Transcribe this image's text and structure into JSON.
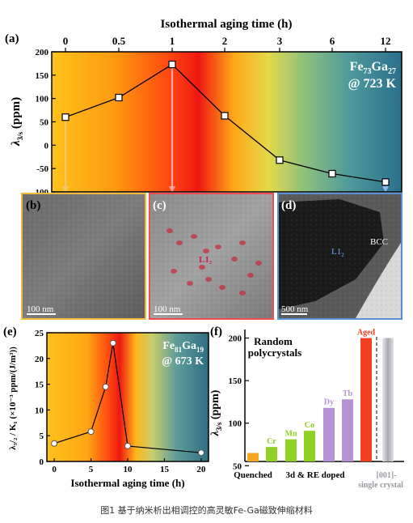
{
  "panel_a": {
    "label": "(a)",
    "top_axis_title": "Isothermal aging time (h)",
    "top_ticks": [
      "0",
      "0.5",
      "1",
      "2",
      "3",
      "6",
      "12"
    ],
    "ylabel_main": "λ",
    "ylabel_sub": "3/s",
    "ylabel_unit": " (ppm)",
    "y_ticks": [
      "200",
      "150",
      "100",
      "50",
      "0",
      "-50",
      "-100"
    ],
    "comp_main": "Fe",
    "comp_sub1": "73",
    "comp_mid": "Ga",
    "comp_sub2": "27",
    "temp": "@ 723 K"
  },
  "panel_b": {
    "label": "(b)",
    "scale": "100 nm"
  },
  "panel_c": {
    "label": "(c)",
    "scale": "100 nm",
    "phase": "L1₂"
  },
  "panel_d": {
    "label": "(d)",
    "scale": "500 nm",
    "phase_l1": "L1",
    "phase_l1_sub": "2",
    "phase_bcc": "BCC"
  },
  "panel_e": {
    "label": "(e)",
    "ylabel": "λ₃/₂ / K₁ (×10⁻³ ppm/(J/m³))",
    "xlabel": "Isothermal aging time (h)",
    "x_ticks": [
      "0",
      "5",
      "10",
      "15",
      "20"
    ],
    "y_ticks": [
      "0",
      "5",
      "10",
      "15",
      "20",
      "25"
    ],
    "comp_main": "Fe",
    "comp_sub1": "81",
    "comp_mid": "Ga",
    "comp_sub2": "19",
    "temp": "@ 673 K"
  },
  "panel_f": {
    "label": "(f)",
    "title_line1": "Random",
    "title_line2": "polycrystals",
    "ylabel_main": "λ",
    "ylabel_sub": "3/s",
    "ylabel_unit": " (ppm)",
    "y_ticks": [
      "50",
      "100",
      "150",
      "200"
    ],
    "group_quenched": "Quenched",
    "group_doped": "3d & RE doped",
    "group_single_line1": "[001]-",
    "group_single_line2": "single crystal"
  },
  "caption": "图1 基于纳米析出相调控的高灵敏Fe-Ga磁致伸缩材料",
  "chart_data": [
    {
      "type": "line",
      "title": "Isothermal aging time (h)",
      "xlabel": "Isothermal aging time (h)",
      "ylabel": "λ3/s (ppm)",
      "ylim": [
        -100,
        200
      ],
      "series": [
        {
          "name": "Fe73Ga27 @ 723 K",
          "x": [
            "0",
            "0.5",
            "1",
            "2",
            "3",
            "6",
            "12"
          ],
          "values": [
            60,
            102,
            173,
            63,
            -32,
            -61,
            -79
          ]
        }
      ]
    },
    {
      "type": "line",
      "xlabel": "Isothermal aging time (h)",
      "ylabel": "λ3/2 / K1 (×10⁻³ ppm/(J/m³))",
      "xlim": [
        -1,
        21
      ],
      "ylim": [
        0,
        25
      ],
      "series": [
        {
          "name": "Fe81Ga19 @ 673 K",
          "x": [
            0,
            5,
            7,
            8,
            10,
            20
          ],
          "values": [
            3.5,
            5.8,
            14.5,
            23,
            3,
            1.7
          ]
        }
      ]
    },
    {
      "type": "bar",
      "ylabel": "λ3/s (ppm)",
      "ylim": [
        55,
        210
      ],
      "categories": [
        "Quenched",
        "Cr",
        "Mn",
        "Co",
        "Dy",
        "Tb",
        "Aged",
        "[001]-single crystal"
      ],
      "values": [
        65,
        72,
        81,
        91,
        118,
        128,
        200,
        200
      ],
      "colors": [
        "#f5a623",
        "#8ed024",
        "#8ed024",
        "#8ed024",
        "#b592d6",
        "#b592d6",
        "#f44021",
        "#c0c0c0"
      ]
    }
  ]
}
